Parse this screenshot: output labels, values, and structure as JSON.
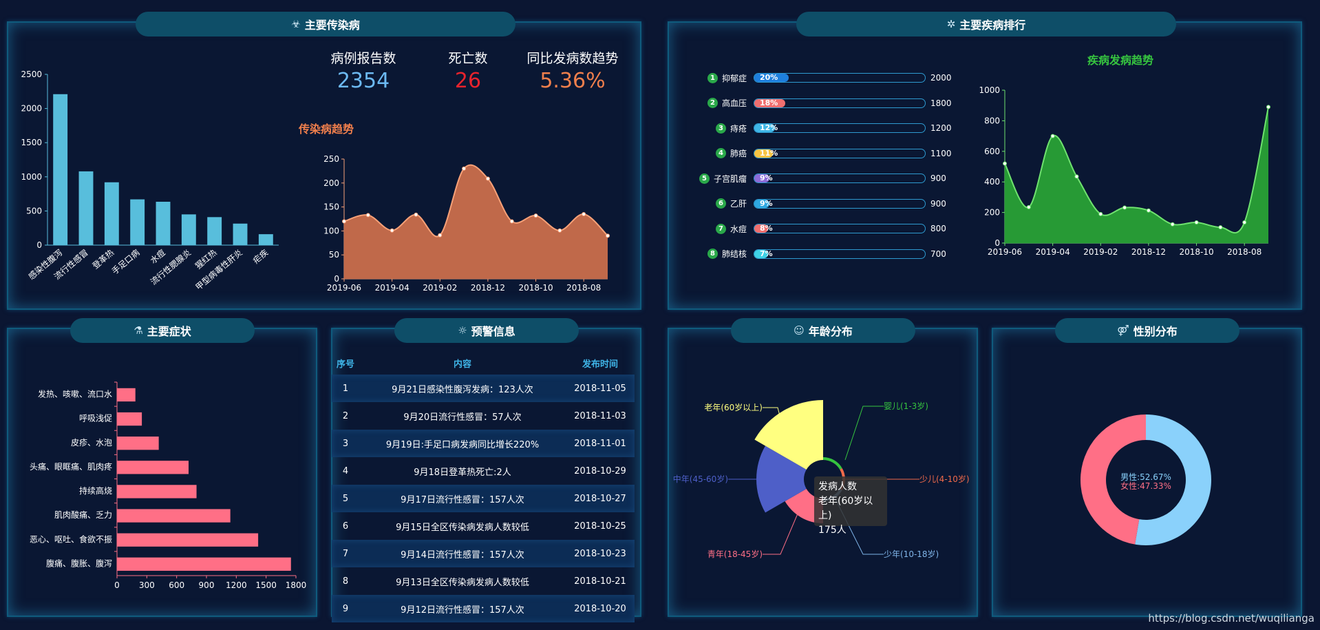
{
  "panels": {
    "infectious": {
      "title": "主要传染病",
      "icon": "☣"
    },
    "disease_rank": {
      "title": "主要疾病排行",
      "icon": "✲"
    },
    "symptoms": {
      "title": "主要症状",
      "icon": "⚗"
    },
    "warning": {
      "title": "预警信息",
      "icon": "☼"
    },
    "age": {
      "title": "年龄分布",
      "icon": "☺"
    },
    "gender": {
      "title": "性别分布",
      "icon": "⚤"
    }
  },
  "stats": [
    {
      "label": "病例报告数",
      "value": "2354",
      "color": "#6cb9f2"
    },
    {
      "label": "死亡数",
      "value": "26",
      "color": "#e8232d"
    },
    {
      "label": "同比发病数趋势",
      "value": "5.36%",
      "color": "#f07f4c"
    }
  ],
  "infectious_trend_title": "传染病趋势",
  "disease_trend_title": "疾病发病趋势",
  "chart_data": [
    {
      "id": "infectious-bar",
      "type": "bar",
      "categories": [
        "感染性腹泻",
        "流行性感冒",
        "登革热",
        "手足口病",
        "水痘",
        "流行性腮腺炎",
        "猩红热",
        "甲型病毒性肝炎",
        "疟疾"
      ],
      "values": [
        2210,
        1080,
        920,
        670,
        635,
        450,
        410,
        315,
        160
      ],
      "ylim": [
        0,
        2500
      ],
      "yticks": [
        0,
        500,
        1000,
        1500,
        2000,
        2500
      ],
      "color": "#58bedc"
    },
    {
      "id": "infectious-trend",
      "type": "area",
      "x": [
        "2019-06",
        "",
        "2019-04",
        "",
        "2019-02",
        "",
        "2018-12",
        "",
        "2018-10",
        "",
        "2018-08",
        ""
      ],
      "xticks": [
        "2019-06",
        "2019-04",
        "2019-02",
        "2018-12",
        "2018-10",
        "2018-08"
      ],
      "values": [
        120,
        133,
        101,
        134,
        91,
        230,
        209,
        120,
        132,
        101,
        135,
        90
      ],
      "ylim": [
        0,
        250
      ],
      "yticks": [
        0,
        50,
        100,
        150,
        200,
        250
      ],
      "color": "#c0694a",
      "line_color": "#f7a178"
    },
    {
      "id": "disease-rank",
      "type": "bar",
      "categories": [
        "抑郁症",
        "高血压",
        "痔疮",
        "肺癌",
        "子宫肌瘤",
        "乙肝",
        "水痘",
        "肺结核"
      ],
      "percents": [
        "20%",
        "18%",
        "12%",
        "11%",
        "9%",
        "9%",
        "8%",
        "7%"
      ],
      "values": [
        2000,
        1800,
        1200,
        1100,
        900,
        900,
        800,
        700
      ],
      "fill": [
        0.2,
        0.18,
        0.12,
        0.11,
        0.09,
        0.09,
        0.08,
        0.07
      ],
      "colors": [
        "#1e7fdd",
        "#f06f6f",
        "#3fb6e6",
        "#f7c443",
        "#8c6cd8",
        "#2ea7e0",
        "#f06f6f",
        "#3fd2e6"
      ]
    },
    {
      "id": "disease-trend",
      "type": "area",
      "x": [
        "2019-06",
        "",
        "2019-04",
        "",
        "2019-02",
        "",
        "2018-12",
        "",
        "2018-10",
        "",
        "2018-08",
        ""
      ],
      "xticks": [
        "2019-06",
        "2019-04",
        "2019-02",
        "2018-12",
        "2018-10",
        "2018-08"
      ],
      "values": [
        520,
        235,
        700,
        435,
        190,
        232,
        213,
        123,
        135,
        103,
        135,
        890
      ],
      "ylim": [
        0,
        1000
      ],
      "yticks": [
        0,
        200,
        400,
        600,
        800,
        1000
      ],
      "color": "#279a35",
      "line_color": "#6fe26f"
    },
    {
      "id": "symptoms-bar",
      "type": "bar",
      "categories": [
        "发热、咳嗽、流口水",
        "呼吸浅促",
        "皮疹、水泡",
        "头痛、眼眶痛、肌肉疼",
        "持续高烧",
        "肌肉酸痛、乏力",
        "恶心、呕吐、食欲不振",
        "腹痛、腹胀、腹泻"
      ],
      "values": [
        185,
        250,
        420,
        720,
        800,
        1140,
        1420,
        1750
      ],
      "xlim": [
        0,
        1800
      ],
      "xticks": [
        0,
        300,
        600,
        900,
        1200,
        1500,
        1800
      ],
      "color": "#ff6f86"
    },
    {
      "id": "age-rose",
      "type": "pie",
      "categories": [
        "婴儿(1-3岁)",
        "少儿(4-10岁)",
        "少年(10-18岁)",
        "青年(18-45岁)",
        "中年(45-60岁)",
        "老年(60岁以上)"
      ],
      "values": [
        12,
        8,
        10,
        30,
        110,
        175
      ],
      "colors": [
        "#36c43f",
        "#f06a4a",
        "#7fb4e8",
        "#ff6f86",
        "#4e5fc8",
        "#ffff80"
      ],
      "tooltip": {
        "title": "发病人数",
        "name": "老年(60岁以上)",
        "value": "175人"
      }
    },
    {
      "id": "gender-donut",
      "type": "pie",
      "categories": [
        "男性",
        "女性"
      ],
      "values": [
        52.67,
        47.33
      ],
      "colors": [
        "#8ad1fb",
        "#ff6f86"
      ],
      "labels": [
        "男性:52.67%",
        "女性:47.33%"
      ]
    }
  ],
  "warning": {
    "headers": [
      "序号",
      "内容",
      "发布时间"
    ],
    "rows": [
      [
        "1",
        "9月21日感染性腹泻发病：123人次",
        "2018-11-05"
      ],
      [
        "2",
        "9月20日流行性感冒：57人次",
        "2018-11-03"
      ],
      [
        "3",
        "9月19日:手足口病发病同比增长220%",
        "2018-11-01"
      ],
      [
        "4",
        "9月18日登革热死亡:2人",
        "2018-10-29"
      ],
      [
        "5",
        "9月17日流行性感冒：157人次",
        "2018-10-27"
      ],
      [
        "6",
        "9月15日全区传染病发病人数较低",
        "2018-10-25"
      ],
      [
        "7",
        "9月14日流行性感冒：157人次",
        "2018-10-23"
      ],
      [
        "8",
        "9月13日全区传染病发病人数较低",
        "2018-10-21"
      ],
      [
        "9",
        "9月12日流行性感冒：157人次",
        "2018-10-20"
      ]
    ]
  },
  "watermark": "https://blog.csdn.net/wuqilianga"
}
